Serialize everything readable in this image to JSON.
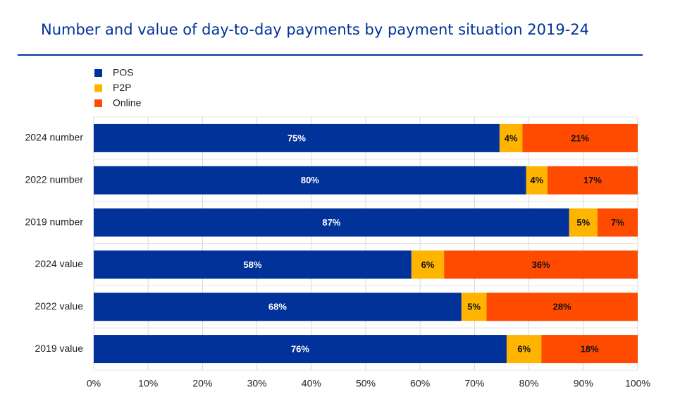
{
  "chart_data": {
    "type": "stacked-bar-horizontal",
    "title": "Number and value of day-to-day payments by payment situation 2019-24",
    "categories": [
      "2024 number",
      "2022 number",
      "2019 number",
      "2024 value",
      "2022 value",
      "2019 value"
    ],
    "series": [
      {
        "name": "POS",
        "color": "#003299",
        "values": [
          74.6,
          79.5,
          87.4,
          58.4,
          67.6,
          75.9
        ],
        "value_labels": [
          "75%",
          "80%",
          "87%",
          "58%",
          "68%",
          "76%"
        ]
      },
      {
        "name": "P2P",
        "color": "#ffb400",
        "values": [
          4.2,
          3.9,
          5.2,
          6.0,
          4.6,
          6.4
        ],
        "value_labels": [
          "4%",
          "4%",
          "5%",
          "6%",
          "5%",
          "6%"
        ]
      },
      {
        "name": "Online",
        "color": "#ff4b00",
        "values": [
          21.2,
          16.6,
          7.4,
          35.6,
          27.8,
          17.7
        ],
        "value_labels": [
          "21%",
          "17%",
          "7%",
          "36%",
          "28%",
          "18%"
        ]
      }
    ],
    "xlim": [
      0,
      100
    ],
    "xticks": [
      {
        "value": 0,
        "label": "0%"
      },
      {
        "value": 10,
        "label": "10%"
      },
      {
        "value": 20,
        "label": "20%"
      },
      {
        "value": 30,
        "label": "30%"
      },
      {
        "value": 40,
        "label": "40%"
      },
      {
        "value": 50,
        "label": "50%"
      },
      {
        "value": 60,
        "label": "60%"
      },
      {
        "value": 70,
        "label": "70%"
      },
      {
        "value": 80,
        "label": "80%"
      },
      {
        "value": 90,
        "label": "90%"
      },
      {
        "value": 100,
        "label": "100%"
      }
    ],
    "grid": true,
    "legend": "top-left"
  }
}
